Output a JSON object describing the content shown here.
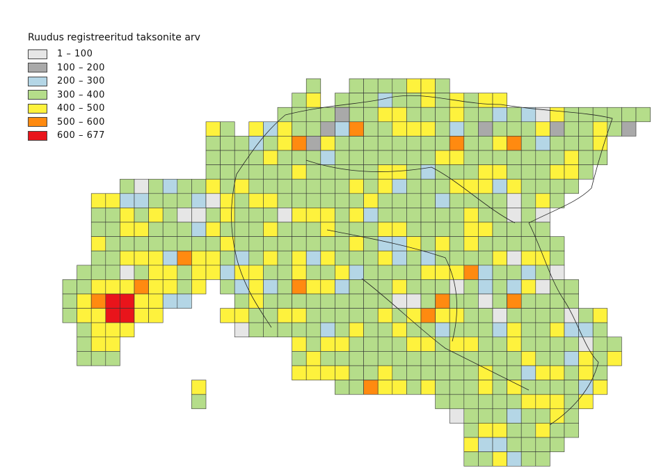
{
  "legend": {
    "title": "Ruudus registreeritud taksonite arv",
    "classes": [
      {
        "label": "1 – 100",
        "color": "#e6e6e6"
      },
      {
        "label": "100 – 200",
        "color": "#a9a9a9"
      },
      {
        "label": "200 – 300",
        "color": "#b4d6e6"
      },
      {
        "label": "300 – 400",
        "color": "#b5dd8a"
      },
      {
        "label": "400 – 500",
        "color": "#fef23d"
      },
      {
        "label": "500 – 600",
        "color": "#ff8a10"
      },
      {
        "label": "600 – 677",
        "color": "#e9141b"
      }
    ]
  },
  "map": {
    "grid_cols": 40,
    "grid_rows": 27,
    "cell_default_class": 3,
    "rows": [
      [
        12,
        12,
        ""
      ],
      [
        6,
        6,
        ""
      ],
      [
        5,
        5,
        ""
      ],
      [
        4,
        4,
        ""
      ],
      [
        4,
        4,
        ""
      ],
      [
        5,
        5,
        ""
      ],
      [
        5,
        5,
        ""
      ],
      [
        4,
        5,
        ""
      ],
      [
        4,
        4,
        ""
      ],
      [
        4,
        4,
        ""
      ]
    ],
    "cells": {
      "3": [
        [
          15,
          8,
          1
        ],
        [
          16,
          8,
          1
        ],
        [
          17,
          6,
          2
        ],
        [
          18,
          6,
          2
        ],
        [
          19,
          6,
          2
        ],
        [
          20,
          6,
          2
        ],
        [
          21,
          6,
          2
        ],
        [
          22,
          6,
          2
        ],
        [
          23,
          6,
          2
        ],
        [
          24,
          6,
          2
        ],
        [
          25,
          6,
          2
        ],
        [
          26,
          6,
          2
        ]
      ],
      "4": [
        [
          15,
          10,
          1
        ],
        [
          40,
          10,
          2
        ]
      ],
      "5": [
        [
          15,
          14,
          1
        ],
        [
          16,
          14,
          1
        ],
        [
          17,
          14,
          1
        ],
        [
          18,
          14,
          1
        ],
        [
          19,
          14,
          1
        ]
      ],
      "6": [
        [
          13,
          15,
          1
        ],
        [
          14,
          15,
          1
        ],
        [
          15,
          15,
          1
        ],
        [
          16,
          15,
          1
        ],
        [
          17,
          15,
          1
        ],
        [
          18,
          15,
          1
        ]
      ]
    },
    "overrides": []
  }
}
